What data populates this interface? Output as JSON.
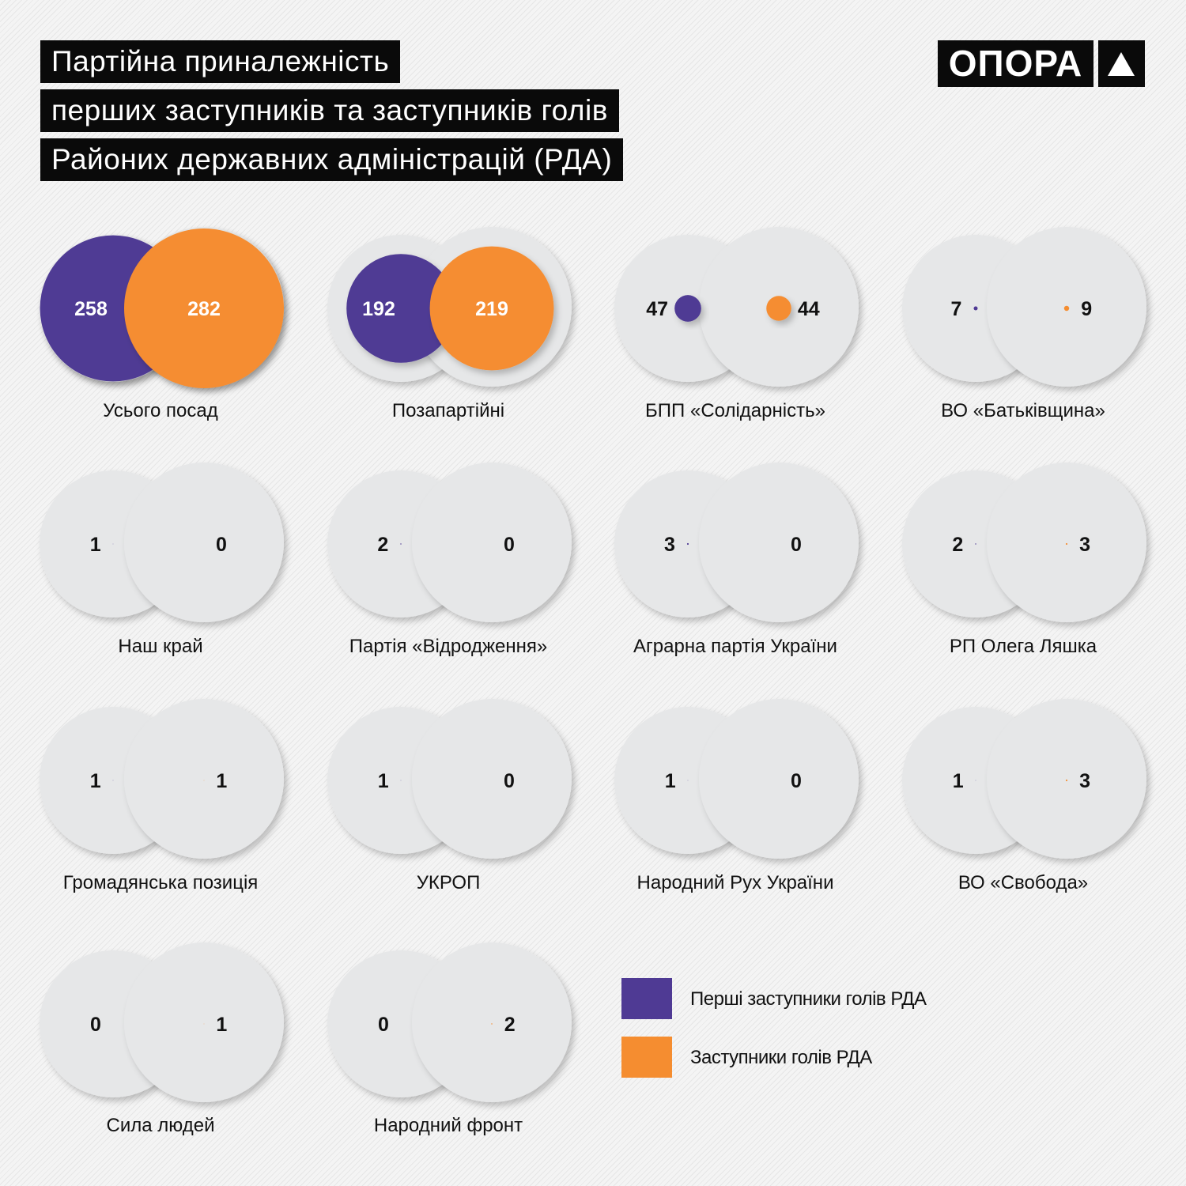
{
  "title": {
    "lines": [
      "Партійна приналежність",
      "перших заступників та заступників голів",
      "Районих державних адміністрацій (РДА)"
    ]
  },
  "logo": {
    "text": "ОПОРА",
    "icon": "triangle-up-icon"
  },
  "colors": {
    "first_deputies": "#4f3a94",
    "deputies": "#f58d30",
    "bg_circle": "#e6e7e8"
  },
  "chart_data": {
    "type": "bubble-pairs",
    "title": "Партійна приналежність перших заступників та заступників голів Районих державних адміністрацій (РДА)",
    "series": [
      "Перші заступники голів РДА",
      "Заступники голів РДА"
    ],
    "categories": [
      {
        "label": "Усього посад",
        "first": 258,
        "deputy": 282
      },
      {
        "label": "Позапартійні",
        "first": 192,
        "deputy": 219
      },
      {
        "label": "БПП «Солідарність»",
        "first": 47,
        "deputy": 44
      },
      {
        "label": "ВО «Батьківщина»",
        "first": 7,
        "deputy": 9
      },
      {
        "label": "Наш край",
        "first": 1,
        "deputy": 0
      },
      {
        "label": "Партія «Відродження»",
        "first": 2,
        "deputy": 0
      },
      {
        "label": "Аграрна партія України",
        "first": 3,
        "deputy": 0
      },
      {
        "label": "РП Олега Ляшка",
        "first": 2,
        "deputy": 3
      },
      {
        "label": "Громадянська позиція",
        "first": 1,
        "deputy": 1
      },
      {
        "label": "УКРОП",
        "first": 1,
        "deputy": 0
      },
      {
        "label": "Народний Рух України",
        "first": 1,
        "deputy": 0
      },
      {
        "label": "ВО «Свобода»",
        "first": 1,
        "deputy": 3
      },
      {
        "label": "Сила людей",
        "first": 0,
        "deputy": 1
      },
      {
        "label": "Народний фронт",
        "first": 0,
        "deputy": 2
      }
    ],
    "legend_position": "bottom-right"
  },
  "legend": {
    "items": [
      {
        "label": "Перші заступники  голів РДА"
      },
      {
        "label": "Заступники голів РДА"
      }
    ]
  }
}
